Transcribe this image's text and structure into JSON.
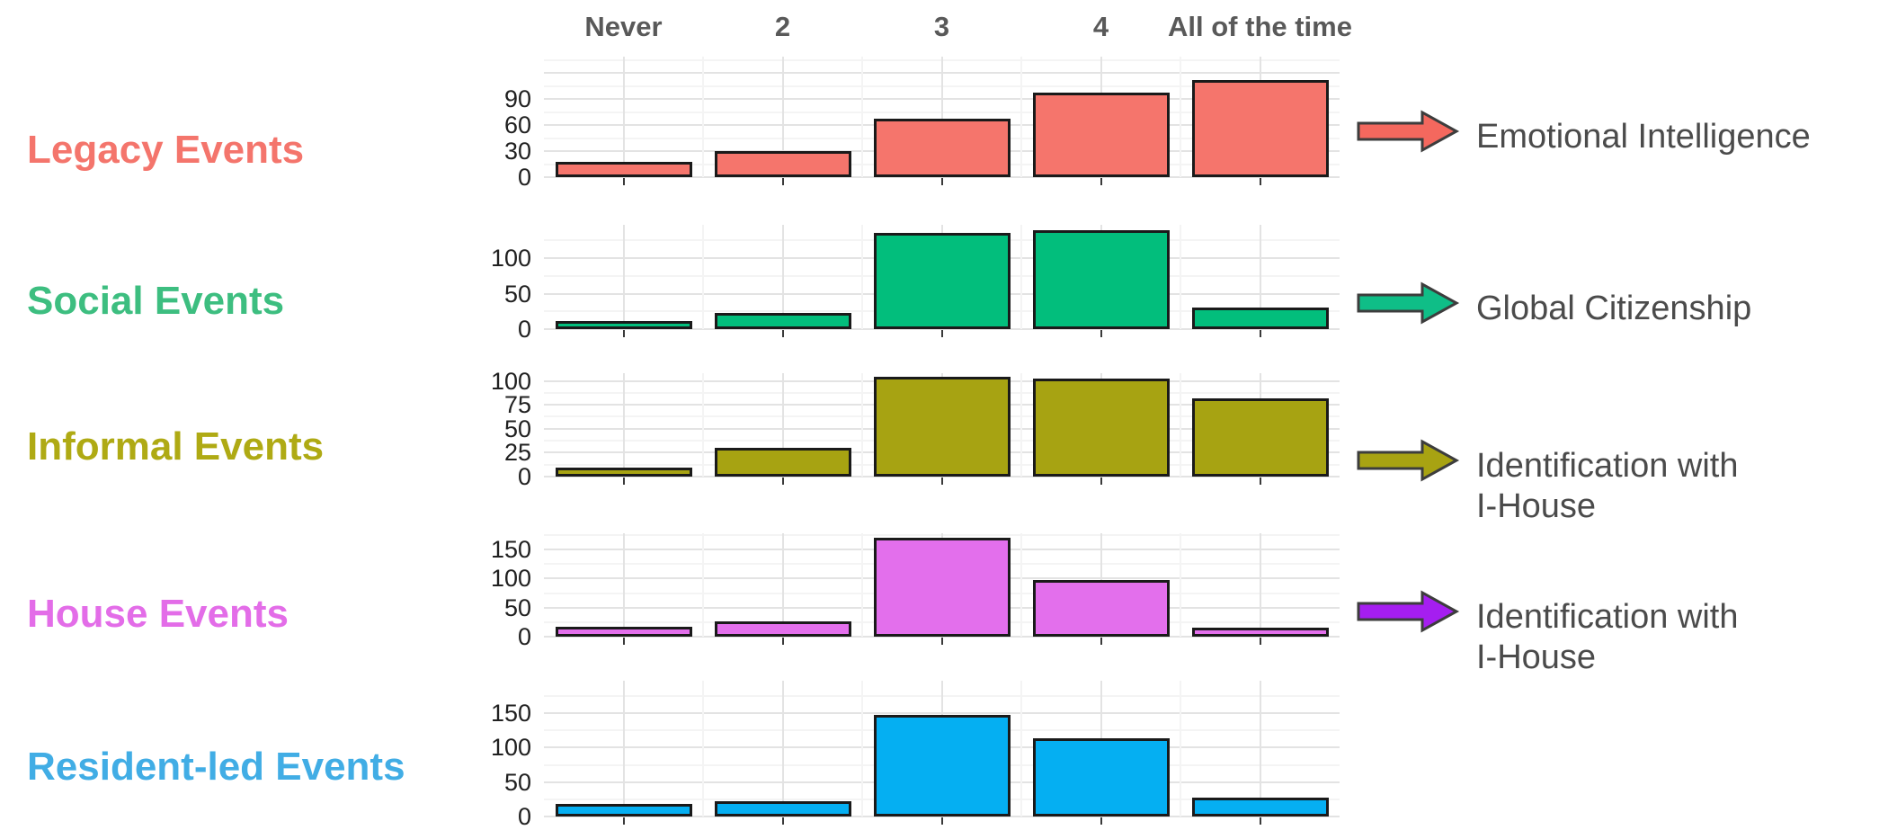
{
  "figure": {
    "background": "#ffffff",
    "header_color": "#595959",
    "tick_color": "#212121",
    "legend_text_color": "#4B4B4B",
    "grid_major_color": "#E3E3E3",
    "grid_minor_color": "#F4F4F4",
    "bar_stroke_color": "#1A1A1A",
    "arrow_stroke_color": "#3D3D3D"
  },
  "chart_data": {
    "type": "bar",
    "layout": "faceted_rows",
    "title": "",
    "xlabel": "",
    "ylabel": "",
    "grid": true,
    "legend_position": "right",
    "categories": [
      "Never",
      "2",
      "3",
      "4",
      "All of the time"
    ],
    "series": [
      {
        "name": "Legacy Events",
        "values": [
          18,
          30,
          67,
          97,
          112
        ],
        "yticks": [
          0,
          30,
          60,
          90
        ],
        "ymax": 139,
        "bar_color": "#F5756C",
        "label_color": "#F4756C"
      },
      {
        "name": "Social Events",
        "values": [
          11,
          23,
          135,
          139,
          31
        ],
        "yticks": [
          0,
          50,
          100
        ],
        "ymax": 147,
        "bar_color": "#02BE7C",
        "label_color": "#3DBE80"
      },
      {
        "name": "Informal Events",
        "values": [
          9,
          30,
          104,
          102,
          82
        ],
        "yticks": [
          0,
          25,
          50,
          75,
          100
        ],
        "ymax": 108,
        "bar_color": "#A7A312",
        "label_color": "#AFAA14"
      },
      {
        "name": "House Events",
        "values": [
          17,
          27,
          170,
          98,
          15
        ],
        "yticks": [
          0,
          50,
          100,
          150
        ],
        "ymax": 178,
        "bar_color": "#E36FEC",
        "label_color": "#E36DE8"
      },
      {
        "name": "Resident-led Events",
        "values": [
          18,
          22,
          147,
          113,
          28
        ],
        "yticks": [
          0,
          50,
          100,
          150
        ],
        "ymax": 197,
        "bar_color": "#05AFF2",
        "label_color": "#41ADE5"
      }
    ],
    "legend": [
      {
        "lines": [
          "Emotional Intelligence"
        ],
        "arrow_color": "#F4685E"
      },
      {
        "lines": [
          "Global Citizenship"
        ],
        "arrow_color": "#0FBE87"
      },
      {
        "lines": [
          "Identification with",
          "I-House"
        ],
        "arrow_color": "#A8A312"
      },
      {
        "lines": [
          "Identification with",
          "I-House"
        ],
        "arrow_color": "#A51EF0"
      }
    ]
  }
}
